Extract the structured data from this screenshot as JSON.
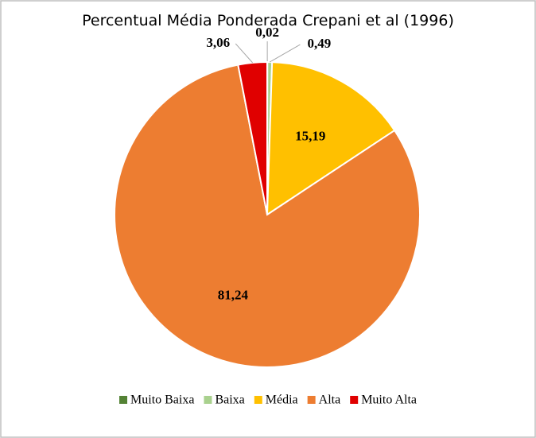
{
  "chart_data": {
    "type": "pie",
    "title": "Percentual Média Ponderada Crepani et al (1996)",
    "categories": [
      "Muito Baixa",
      "Baixa",
      "Média",
      "Alta",
      "Muito Alta"
    ],
    "values": [
      0.02,
      0.49,
      15.19,
      81.24,
      3.06
    ],
    "value_labels": [
      "0,02",
      "0,49",
      "15,19",
      "81,24",
      "3,06"
    ],
    "colors": [
      "#548235",
      "#a9d18e",
      "#ffc000",
      "#ed7d31",
      "#e00000"
    ],
    "legend": "bottom"
  }
}
